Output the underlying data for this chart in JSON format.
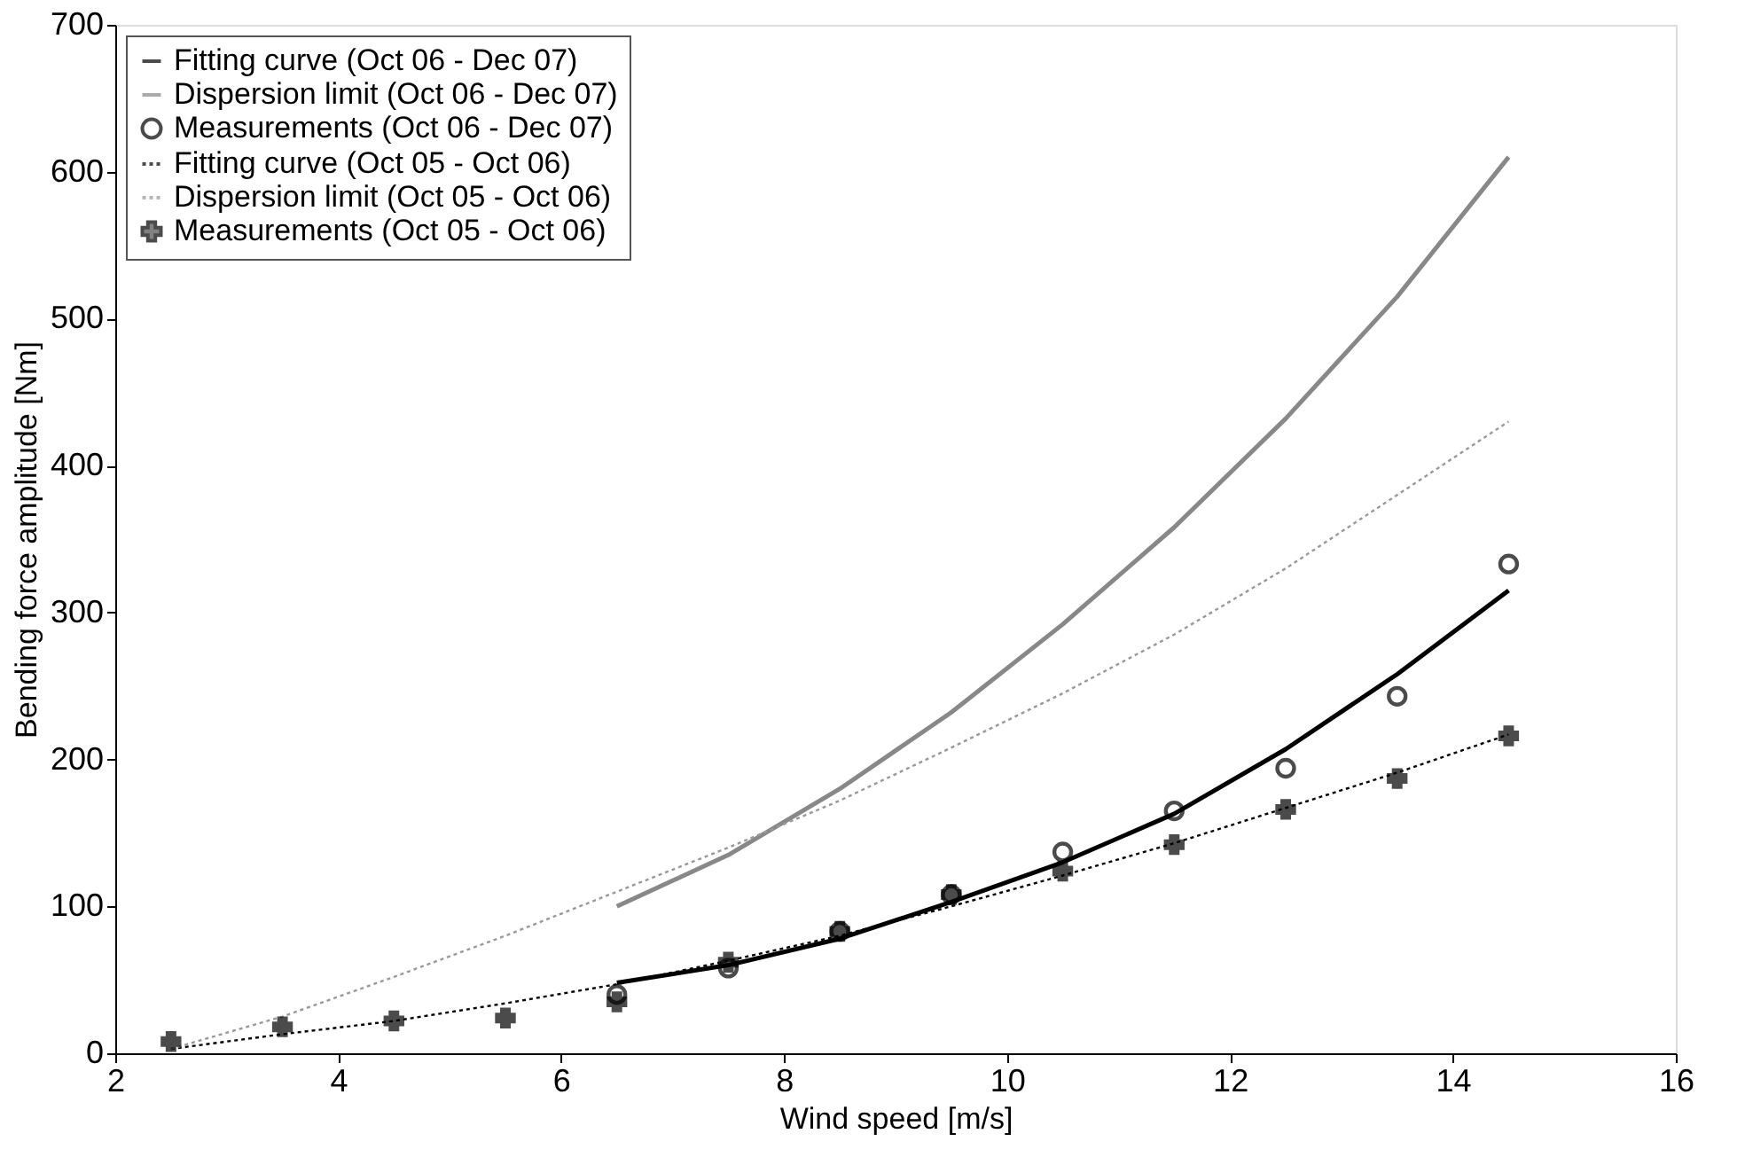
{
  "chart_data": {
    "type": "line",
    "xlabel": "Wind speed [m/s]",
    "ylabel": "Bending force amplitude [Nm]",
    "xlim": [
      2,
      16
    ],
    "xticks": [
      2,
      4,
      6,
      8,
      10,
      12,
      14,
      16
    ],
    "ylim": [
      0,
      700
    ],
    "yticks": [
      0,
      100,
      200,
      300,
      400,
      500,
      600,
      700
    ],
    "grid": false,
    "legend": "top left",
    "series": [
      {
        "name": "Fitting curve (Oct 06 - Dec 07)",
        "type": "line",
        "line_style": "solid",
        "color": "#000000",
        "x": [
          6.5,
          7.5,
          8.5,
          9.5,
          10.5,
          11.5,
          12.5,
          13.5,
          14.5
        ],
        "values": [
          48,
          60,
          78,
          103,
          130,
          163,
          207,
          258,
          315
        ]
      },
      {
        "name": "Dispersion limit (Oct 06 - Dec 07)",
        "type": "line",
        "line_style": "solid",
        "color": "#888888",
        "x": [
          6.5,
          7.5,
          8.5,
          9.5,
          10.5,
          11.5,
          12.5,
          13.5,
          14.5
        ],
        "values": [
          100,
          135,
          180,
          232,
          292,
          358,
          432,
          515,
          610
        ]
      },
      {
        "name": "Measurements (Oct 06 - Dec 07)",
        "type": "scatter",
        "marker": "circle",
        "color": "#000000",
        "x": [
          6.5,
          7.5,
          8.5,
          9.5,
          10.5,
          11.5,
          12.5,
          13.5,
          14.5
        ],
        "values": [
          40,
          58,
          83,
          108,
          137,
          165,
          194,
          243,
          333
        ]
      },
      {
        "name": "Fitting curve (Oct 05 - Oct 06)",
        "type": "line",
        "line_style": "dotted",
        "color": "#000000",
        "x": [
          2.5,
          3.5,
          4.5,
          5.5,
          6.5,
          7.5,
          8.5,
          9.5,
          10.5,
          11.5,
          12.5,
          13.5,
          14.5
        ],
        "values": [
          3,
          13,
          22,
          34,
          47,
          63,
          80,
          100,
          121,
          143,
          167,
          191,
          217
        ]
      },
      {
        "name": "Dispersion limit (Oct 05 - Oct 06)",
        "type": "line",
        "line_style": "dotted",
        "color": "#999999",
        "x": [
          2.5,
          3.5,
          4.5,
          5.5,
          6.5,
          7.5,
          8.5,
          9.5,
          10.5,
          11.5,
          12.5,
          13.5,
          14.5
        ],
        "values": [
          3,
          25,
          52,
          80,
          110,
          140,
          172,
          208,
          245,
          285,
          330,
          380,
          430
        ]
      },
      {
        "name": "Measurements (Oct 05 - Oct 06)",
        "type": "scatter",
        "marker": "cross",
        "color": "#000000",
        "x": [
          2.5,
          3.5,
          4.5,
          5.5,
          6.5,
          7.5,
          8.5,
          9.5,
          10.5,
          11.5,
          12.5,
          13.5,
          14.5
        ],
        "values": [
          8,
          18,
          22,
          24,
          35,
          62,
          83,
          108,
          124,
          142,
          166,
          187,
          216
        ]
      }
    ]
  }
}
